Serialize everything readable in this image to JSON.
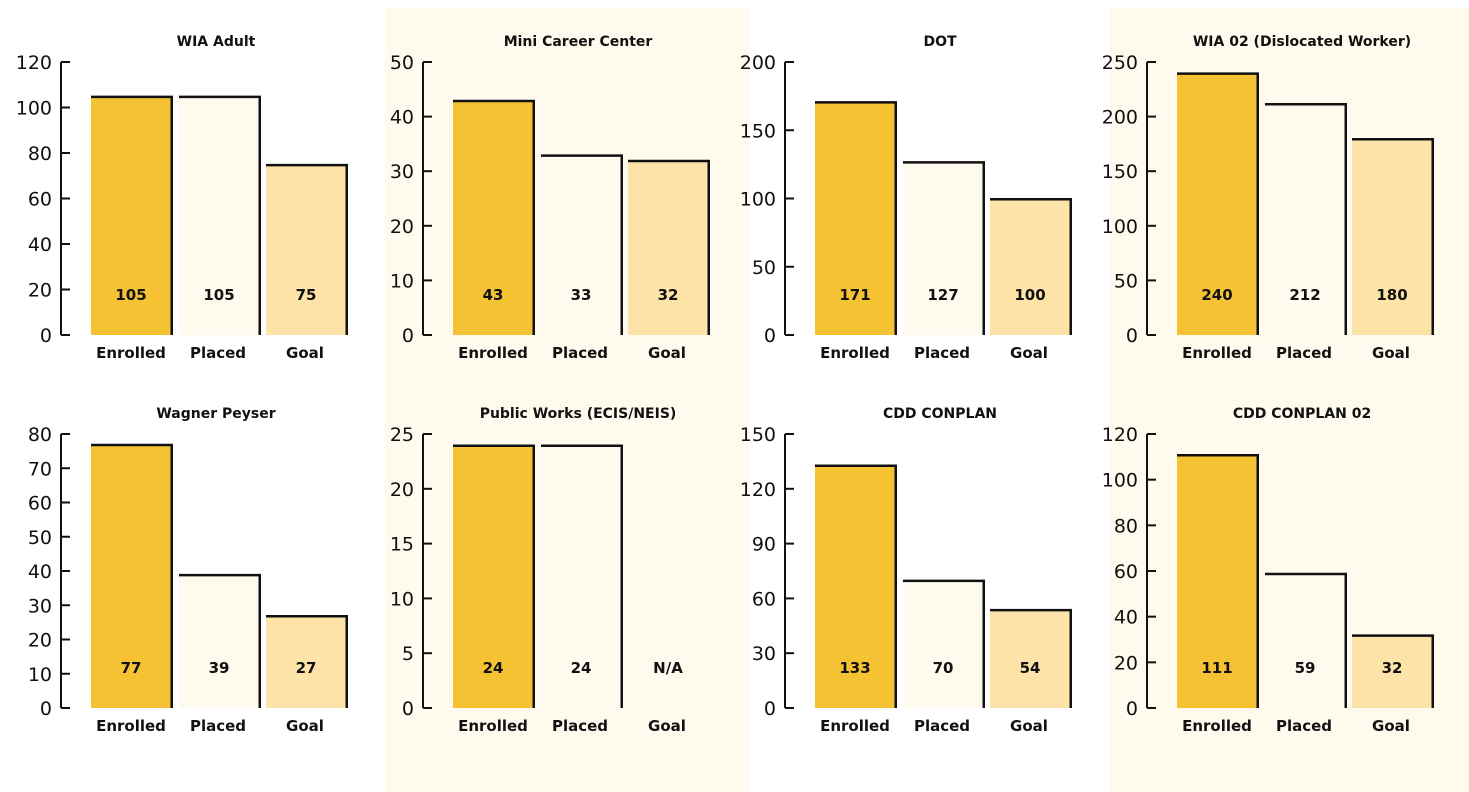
{
  "colors": {
    "enrolled": "#f4c232",
    "placed": "#fffaee",
    "goal": "#fde3a8",
    "panel_bg": "#fffaee",
    "axis": "#111111"
  },
  "chart_data": [
    {
      "type": "bar",
      "title": "WIA Adult",
      "categories": [
        "Enrolled",
        "Placed",
        "Goal"
      ],
      "values": [
        105,
        105,
        75
      ],
      "value_labels": [
        "105",
        "105",
        "75"
      ],
      "yticks": [
        0,
        20,
        40,
        60,
        80,
        100,
        120
      ],
      "ylim": [
        0,
        120
      ],
      "xlabel": "",
      "ylabel": ""
    },
    {
      "type": "bar",
      "title": "Mini Career Center",
      "categories": [
        "Enrolled",
        "Placed",
        "Goal"
      ],
      "values": [
        43,
        33,
        32
      ],
      "value_labels": [
        "43",
        "33",
        "32"
      ],
      "yticks": [
        0,
        10,
        20,
        30,
        40,
        50
      ],
      "ylim": [
        0,
        50
      ],
      "xlabel": "",
      "ylabel": ""
    },
    {
      "type": "bar",
      "title": "DOT",
      "categories": [
        "Enrolled",
        "Placed",
        "Goal"
      ],
      "values": [
        171,
        127,
        100
      ],
      "value_labels": [
        "171",
        "127",
        "100"
      ],
      "yticks": [
        0,
        50,
        100,
        150,
        200
      ],
      "ylim": [
        0,
        200
      ],
      "xlabel": "",
      "ylabel": ""
    },
    {
      "type": "bar",
      "title": "WIA 02 (Dislocated Worker)",
      "categories": [
        "Enrolled",
        "Placed",
        "Goal"
      ],
      "values": [
        240,
        212,
        180
      ],
      "value_labels": [
        "240",
        "212",
        "180"
      ],
      "yticks": [
        0,
        50,
        100,
        150,
        200,
        250
      ],
      "ylim": [
        0,
        250
      ],
      "xlabel": "",
      "ylabel": ""
    },
    {
      "type": "bar",
      "title": "Wagner Peyser",
      "categories": [
        "Enrolled",
        "Placed",
        "Goal"
      ],
      "values": [
        77,
        39,
        27
      ],
      "value_labels": [
        "77",
        "39",
        "27"
      ],
      "yticks": [
        0,
        10,
        20,
        30,
        40,
        50,
        60,
        70,
        80
      ],
      "ylim": [
        0,
        80
      ],
      "xlabel": "",
      "ylabel": ""
    },
    {
      "type": "bar",
      "title": "Public Works (ECIS/NEIS)",
      "categories": [
        "Enrolled",
        "Placed",
        "Goal"
      ],
      "values": [
        24,
        24,
        null
      ],
      "value_labels": [
        "24",
        "24",
        "N/A"
      ],
      "yticks": [
        0,
        5,
        10,
        15,
        20,
        25
      ],
      "ylim": [
        0,
        25
      ],
      "xlabel": "",
      "ylabel": ""
    },
    {
      "type": "bar",
      "title": "CDD CONPLAN",
      "categories": [
        "Enrolled",
        "Placed",
        "Goal"
      ],
      "values": [
        133,
        70,
        54
      ],
      "value_labels": [
        "133",
        "70",
        "54"
      ],
      "yticks": [
        0,
        30,
        60,
        90,
        120,
        150
      ],
      "ylim": [
        0,
        150
      ],
      "xlabel": "",
      "ylabel": ""
    },
    {
      "type": "bar",
      "title": "CDD CONPLAN 02",
      "categories": [
        "Enrolled",
        "Placed",
        "Goal"
      ],
      "values": [
        111,
        59,
        32
      ],
      "value_labels": [
        "111",
        "59",
        "32"
      ],
      "yticks": [
        0,
        20,
        40,
        60,
        80,
        100,
        120
      ],
      "ylim": [
        0,
        120
      ],
      "xlabel": "",
      "ylabel": ""
    }
  ]
}
